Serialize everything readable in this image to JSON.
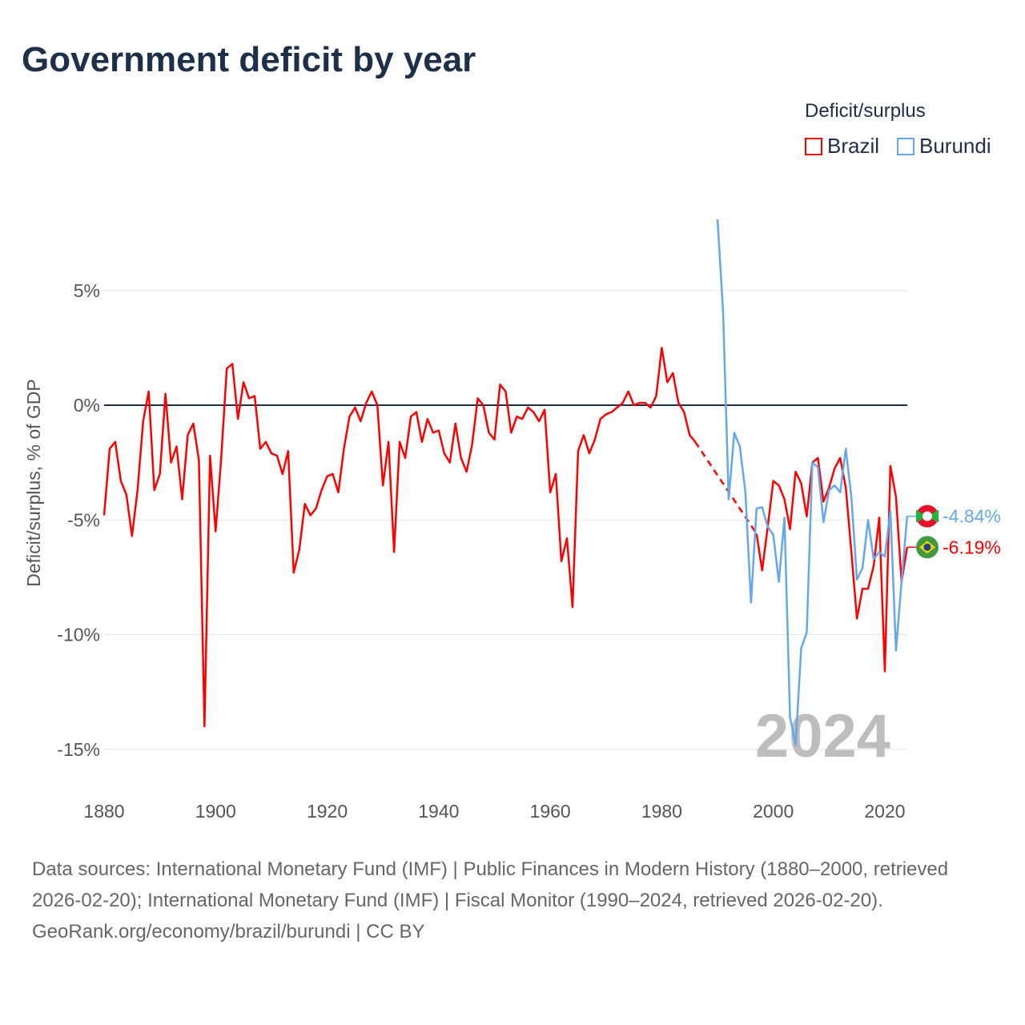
{
  "chart_data": {
    "type": "line",
    "title": "Government deficit by year",
    "xlabel": "",
    "ylabel": "Deficit/surplus, % of GDP",
    "xlim": [
      1880,
      2024
    ],
    "ylim": [
      -17,
      9
    ],
    "x_ticks": [
      1880,
      1900,
      1920,
      1940,
      1960,
      1980,
      2000,
      2020
    ],
    "x_tick_labels": [
      "1880",
      "1900",
      "1920",
      "1940",
      "1960",
      "1980",
      "2000",
      "2020"
    ],
    "y_ticks": [
      5,
      0,
      -5,
      -10,
      -15
    ],
    "y_tick_labels": [
      "5%",
      "0%",
      "-5%",
      "-10%",
      "-15%"
    ],
    "grid": true,
    "legend": {
      "title": "Deficit/surplus",
      "placement": "top-right"
    },
    "year_watermark": "2024",
    "series": [
      {
        "name": "Brazil",
        "color": "#ff0000",
        "end_label": "-6.19%",
        "start_year": 1880,
        "values": [
          -4.8,
          -1.9,
          -1.6,
          -3.3,
          -3.9,
          -5.7,
          -3.7,
          -0.7,
          0.6,
          -3.7,
          -3.0,
          0.5,
          -2.5,
          -1.8,
          -4.1,
          -1.3,
          -0.8,
          -2.4,
          -14.0,
          -2.2,
          -5.5,
          -2.3,
          1.6,
          1.8,
          -0.6,
          1.0,
          0.3,
          0.4,
          -1.9,
          -1.6,
          -2.1,
          -2.2,
          -3.0,
          -2.0,
          -7.3,
          -6.3,
          -4.3,
          -4.8,
          -4.5,
          -3.7,
          -3.1,
          -3.0,
          -3.8,
          -1.9,
          -0.5,
          -0.1,
          -0.7,
          0.1,
          0.6,
          0.0,
          -3.5,
          -1.6,
          -6.4,
          -1.6,
          -2.3,
          -0.5,
          -0.3,
          -1.6,
          -0.6,
          -1.2,
          -1.1,
          -2.1,
          -2.5,
          -0.8,
          -2.3,
          -2.9,
          -1.7,
          0.3,
          0.0,
          -1.2,
          -1.5,
          0.9,
          0.6,
          -1.2,
          -0.5,
          -0.6,
          -0.1,
          -0.3,
          -0.7,
          -0.2,
          -3.8,
          -3.0,
          -6.8,
          -5.8,
          -8.8,
          -2.0,
          -1.3,
          -2.1,
          -1.5,
          -0.6,
          -0.4,
          -0.3,
          -0.1,
          0.1,
          0.6,
          0.0,
          0.1,
          0.1,
          -0.1,
          0.4,
          2.5,
          1.0,
          1.4,
          0.1,
          -0.3,
          -1.3,
          -1.6,
          null,
          null,
          null,
          null,
          null,
          null,
          null,
          null,
          null,
          null,
          -5.6,
          -7.2,
          -5.3,
          -3.3,
          -3.5,
          -4.1,
          -5.4,
          -2.9,
          -3.4,
          -4.85,
          -2.5,
          -2.3,
          -4.2,
          -3.6,
          -2.75,
          -2.3,
          -3.6,
          -6.4,
          -9.3,
          -8.0,
          -8.0,
          -7.0,
          -4.9,
          -11.6,
          -2.65,
          -4.0,
          -7.7,
          -6.19
        ]
      },
      {
        "name": "Burundi",
        "color": "#64a8ec",
        "end_label": "-4.84%",
        "start_year": 1990,
        "values": [
          8.1,
          4.05,
          -4.1,
          -1.2,
          -1.8,
          -3.8,
          -8.6,
          -4.5,
          -4.45,
          -5.3,
          -5.65,
          -7.7,
          -4.9,
          -13.6,
          -14.8,
          -10.6,
          -9.9,
          -2.5,
          -2.7,
          -5.1,
          -3.7,
          -3.5,
          -3.8,
          -1.9,
          -4.0,
          -7.6,
          -7.1,
          -5.0,
          -6.7,
          -6.4,
          -6.6,
          -4.6,
          -10.7,
          -7.7,
          -4.84
        ]
      }
    ]
  },
  "footer": {
    "sources": "Data sources: International Monetary Fund (IMF) | Public Finances in Modern History (1880–2000, retrieved 2026-02-20); International Monetary Fund (IMF) | Fiscal Monitor (1990–2024, retrieved 2026-02-20).",
    "credit": "GeoRank.org/economy/brazil/burundi | CC BY"
  }
}
